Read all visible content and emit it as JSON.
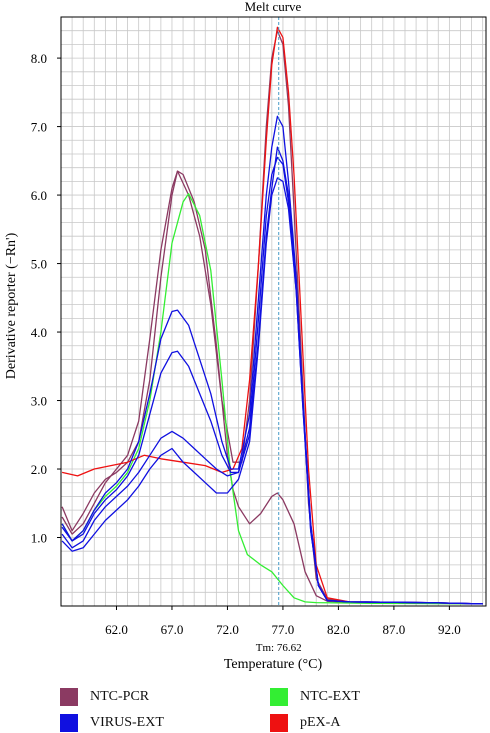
{
  "chart_data": {
    "type": "line",
    "title": "Melt curve",
    "xlabel": "Temperature (°C)",
    "ylabel": "Derivative reporter (−Rn')",
    "xlim": [
      57.0,
      95.3
    ],
    "ylim": [
      0.0,
      8.6
    ],
    "x_ticks": [
      "62.0",
      "67.0",
      "72.0",
      "77.0",
      "82.0",
      "87.0",
      "92.0"
    ],
    "y_ticks": [
      "1.0",
      "2.0",
      "3.0",
      "4.0",
      "5.0",
      "6.0",
      "7.0",
      "8.0"
    ],
    "grid": true,
    "marker": {
      "label": "Tm: 76.62",
      "x": 76.62
    },
    "legend_position": "bottom",
    "legend": [
      {
        "label": "NTC-PCR",
        "color": "#8B3A62"
      },
      {
        "label": "NTC-EXT",
        "color": "#33EE33"
      },
      {
        "label": "VIRUS-EXT",
        "color": "#1010E0"
      },
      {
        "label": "pEX-A",
        "color": "#EE1111"
      }
    ],
    "series": [
      {
        "name": "NTC-PCR",
        "color": "#8B3A62",
        "points": [
          [
            57.1,
            1.45
          ],
          [
            58.0,
            1.1
          ],
          [
            59.0,
            1.35
          ],
          [
            60.0,
            1.65
          ],
          [
            61.0,
            1.85
          ],
          [
            62.0,
            1.95
          ],
          [
            63.0,
            2.1
          ],
          [
            64.0,
            2.4
          ],
          [
            65.0,
            3.3
          ],
          [
            66.0,
            4.8
          ],
          [
            67.0,
            6.0
          ],
          [
            67.5,
            6.35
          ],
          [
            68.0,
            6.3
          ],
          [
            69.0,
            5.9
          ],
          [
            70.0,
            5.2
          ],
          [
            71.0,
            3.8
          ],
          [
            72.0,
            2.2
          ],
          [
            72.5,
            1.7
          ],
          [
            73.0,
            1.45
          ],
          [
            74.0,
            1.2
          ],
          [
            75.0,
            1.35
          ],
          [
            76.0,
            1.6
          ],
          [
            76.5,
            1.65
          ],
          [
            77.0,
            1.55
          ],
          [
            78.0,
            1.2
          ],
          [
            79.0,
            0.5
          ],
          [
            80.0,
            0.15
          ],
          [
            81.0,
            0.07
          ],
          [
            83.0,
            0.05
          ],
          [
            90.0,
            0.04
          ],
          [
            95.0,
            0.03
          ]
        ]
      },
      {
        "name": "NTC-PCR",
        "color": "#8B3A62",
        "points": [
          [
            57.1,
            1.3
          ],
          [
            58.0,
            1.05
          ],
          [
            59.0,
            1.2
          ],
          [
            60.0,
            1.5
          ],
          [
            61.0,
            1.8
          ],
          [
            62.0,
            2.0
          ],
          [
            63.0,
            2.2
          ],
          [
            64.0,
            2.7
          ],
          [
            65.0,
            3.9
          ],
          [
            66.0,
            5.2
          ],
          [
            67.0,
            6.1
          ],
          [
            67.5,
            6.35
          ],
          [
            68.5,
            6.0
          ],
          [
            69.5,
            5.4
          ],
          [
            70.5,
            4.4
          ],
          [
            71.5,
            3.0
          ],
          [
            72.5,
            2.1
          ],
          [
            73.3,
            2.1
          ],
          [
            74.0,
            3.0
          ],
          [
            74.8,
            5.0
          ],
          [
            75.5,
            7.0
          ],
          [
            76.0,
            8.0
          ],
          [
            76.5,
            8.4
          ],
          [
            77.0,
            8.2
          ],
          [
            77.5,
            7.3
          ],
          [
            78.0,
            5.8
          ],
          [
            78.7,
            3.5
          ],
          [
            79.3,
            1.5
          ],
          [
            80.0,
            0.4
          ],
          [
            81.0,
            0.1
          ],
          [
            83.0,
            0.06
          ],
          [
            90.0,
            0.05
          ],
          [
            95.0,
            0.03
          ]
        ]
      },
      {
        "name": "NTC-EXT",
        "color": "#33EE33",
        "points": [
          [
            57.1,
            1.2
          ],
          [
            58.0,
            0.95
          ],
          [
            59.0,
            1.1
          ],
          [
            60.0,
            1.4
          ],
          [
            61.0,
            1.6
          ],
          [
            62.0,
            1.75
          ],
          [
            63.0,
            1.95
          ],
          [
            64.0,
            2.3
          ],
          [
            65.0,
            3.0
          ],
          [
            66.0,
            4.0
          ],
          [
            67.0,
            5.3
          ],
          [
            68.0,
            5.9
          ],
          [
            68.5,
            6.02
          ],
          [
            69.5,
            5.7
          ],
          [
            70.5,
            4.9
          ],
          [
            71.5,
            3.3
          ],
          [
            72.3,
            1.9
          ],
          [
            73.0,
            1.1
          ],
          [
            73.8,
            0.75
          ],
          [
            75.0,
            0.6
          ],
          [
            76.0,
            0.5
          ],
          [
            77.0,
            0.3
          ],
          [
            78.0,
            0.12
          ],
          [
            79.0,
            0.06
          ],
          [
            80.0,
            0.05
          ],
          [
            85.0,
            0.04
          ],
          [
            95.0,
            0.03
          ]
        ]
      },
      {
        "name": "pEX-A",
        "color": "#EE1111",
        "points": [
          [
            57.1,
            1.95
          ],
          [
            58.5,
            1.9
          ],
          [
            60.0,
            2.0
          ],
          [
            61.5,
            2.05
          ],
          [
            63.0,
            2.1
          ],
          [
            64.5,
            2.2
          ],
          [
            66.0,
            2.15
          ],
          [
            68.0,
            2.1
          ],
          [
            70.0,
            2.05
          ],
          [
            71.5,
            1.95
          ],
          [
            72.5,
            2.0
          ],
          [
            73.3,
            2.3
          ],
          [
            74.0,
            3.3
          ],
          [
            74.8,
            5.0
          ],
          [
            75.5,
            6.8
          ],
          [
            76.0,
            7.9
          ],
          [
            76.5,
            8.45
          ],
          [
            77.0,
            8.3
          ],
          [
            77.5,
            7.5
          ],
          [
            78.0,
            6.3
          ],
          [
            78.7,
            4.0
          ],
          [
            79.3,
            2.0
          ],
          [
            80.0,
            0.6
          ],
          [
            81.0,
            0.12
          ],
          [
            83.0,
            0.06
          ],
          [
            90.0,
            0.05
          ],
          [
            95.0,
            0.03
          ]
        ]
      },
      {
        "name": "VIRUS-EXT",
        "color": "#1010E0",
        "points": [
          [
            57.1,
            1.2
          ],
          [
            58.0,
            0.95
          ],
          [
            59.0,
            1.1
          ],
          [
            60.0,
            1.4
          ],
          [
            61.0,
            1.65
          ],
          [
            62.0,
            1.8
          ],
          [
            63.0,
            2.0
          ],
          [
            64.0,
            2.4
          ],
          [
            65.0,
            3.1
          ],
          [
            66.0,
            3.9
          ],
          [
            67.0,
            4.3
          ],
          [
            67.5,
            4.32
          ],
          [
            68.5,
            4.1
          ],
          [
            69.5,
            3.6
          ],
          [
            70.5,
            3.1
          ],
          [
            71.5,
            2.4
          ],
          [
            72.3,
            2.0
          ],
          [
            73.0,
            2.0
          ],
          [
            74.0,
            2.8
          ],
          [
            74.8,
            4.5
          ],
          [
            75.5,
            6.0
          ],
          [
            76.0,
            6.7
          ],
          [
            76.5,
            7.15
          ],
          [
            77.0,
            7.0
          ],
          [
            77.5,
            6.2
          ],
          [
            78.2,
            4.8
          ],
          [
            78.8,
            3.0
          ],
          [
            79.5,
            1.2
          ],
          [
            80.2,
            0.3
          ],
          [
            81.0,
            0.08
          ],
          [
            83.0,
            0.06
          ],
          [
            90.0,
            0.05
          ],
          [
            95.0,
            0.03
          ]
        ]
      },
      {
        "name": "VIRUS-EXT",
        "color": "#1010E0",
        "points": [
          [
            57.1,
            1.15
          ],
          [
            58.0,
            0.95
          ],
          [
            59.0,
            1.05
          ],
          [
            60.0,
            1.35
          ],
          [
            61.0,
            1.55
          ],
          [
            62.0,
            1.7
          ],
          [
            63.0,
            1.9
          ],
          [
            64.0,
            2.2
          ],
          [
            65.0,
            2.8
          ],
          [
            66.0,
            3.4
          ],
          [
            67.0,
            3.7
          ],
          [
            67.5,
            3.72
          ],
          [
            68.5,
            3.5
          ],
          [
            69.5,
            3.1
          ],
          [
            70.5,
            2.7
          ],
          [
            71.5,
            2.2
          ],
          [
            72.3,
            1.95
          ],
          [
            73.0,
            1.95
          ],
          [
            74.0,
            2.6
          ],
          [
            74.8,
            4.2
          ],
          [
            75.5,
            5.7
          ],
          [
            76.0,
            6.3
          ],
          [
            76.5,
            6.55
          ],
          [
            77.0,
            6.45
          ],
          [
            77.5,
            5.9
          ],
          [
            78.2,
            4.6
          ],
          [
            78.8,
            2.9
          ],
          [
            79.5,
            1.1
          ],
          [
            80.2,
            0.3
          ],
          [
            81.0,
            0.08
          ],
          [
            83.0,
            0.06
          ],
          [
            90.0,
            0.05
          ],
          [
            95.0,
            0.03
          ]
        ]
      },
      {
        "name": "VIRUS-EXT",
        "color": "#1010E0",
        "points": [
          [
            57.1,
            1.05
          ],
          [
            58.0,
            0.85
          ],
          [
            59.0,
            0.95
          ],
          [
            60.0,
            1.25
          ],
          [
            61.0,
            1.45
          ],
          [
            62.0,
            1.6
          ],
          [
            63.0,
            1.75
          ],
          [
            64.0,
            1.95
          ],
          [
            65.0,
            2.2
          ],
          [
            66.0,
            2.45
          ],
          [
            67.0,
            2.55
          ],
          [
            68.0,
            2.45
          ],
          [
            69.0,
            2.3
          ],
          [
            70.0,
            2.15
          ],
          [
            71.0,
            2.0
          ],
          [
            72.0,
            1.9
          ],
          [
            73.0,
            1.95
          ],
          [
            74.0,
            2.5
          ],
          [
            74.8,
            3.9
          ],
          [
            75.5,
            5.4
          ],
          [
            76.0,
            6.1
          ],
          [
            76.5,
            6.7
          ],
          [
            77.0,
            6.5
          ],
          [
            77.5,
            6.0
          ],
          [
            78.2,
            4.7
          ],
          [
            78.8,
            3.0
          ],
          [
            79.5,
            1.2
          ],
          [
            80.2,
            0.3
          ],
          [
            81.0,
            0.08
          ],
          [
            83.0,
            0.06
          ],
          [
            90.0,
            0.05
          ],
          [
            95.0,
            0.03
          ]
        ]
      },
      {
        "name": "VIRUS-EXT",
        "color": "#1010E0",
        "points": [
          [
            57.1,
            0.95
          ],
          [
            58.0,
            0.8
          ],
          [
            59.0,
            0.85
          ],
          [
            60.0,
            1.05
          ],
          [
            61.0,
            1.25
          ],
          [
            62.0,
            1.4
          ],
          [
            63.0,
            1.55
          ],
          [
            64.0,
            1.75
          ],
          [
            65.0,
            2.0
          ],
          [
            66.0,
            2.2
          ],
          [
            67.0,
            2.3
          ],
          [
            68.0,
            2.1
          ],
          [
            69.0,
            1.95
          ],
          [
            70.0,
            1.8
          ],
          [
            71.0,
            1.65
          ],
          [
            72.0,
            1.65
          ],
          [
            73.0,
            1.85
          ],
          [
            74.0,
            2.4
          ],
          [
            74.8,
            3.8
          ],
          [
            75.5,
            5.3
          ],
          [
            76.0,
            6.0
          ],
          [
            76.5,
            6.25
          ],
          [
            77.0,
            6.2
          ],
          [
            77.5,
            5.8
          ],
          [
            78.2,
            4.6
          ],
          [
            78.8,
            2.9
          ],
          [
            79.5,
            1.1
          ],
          [
            80.2,
            0.3
          ],
          [
            81.0,
            0.08
          ],
          [
            83.0,
            0.06
          ],
          [
            90.0,
            0.05
          ],
          [
            95.0,
            0.03
          ]
        ]
      }
    ]
  }
}
